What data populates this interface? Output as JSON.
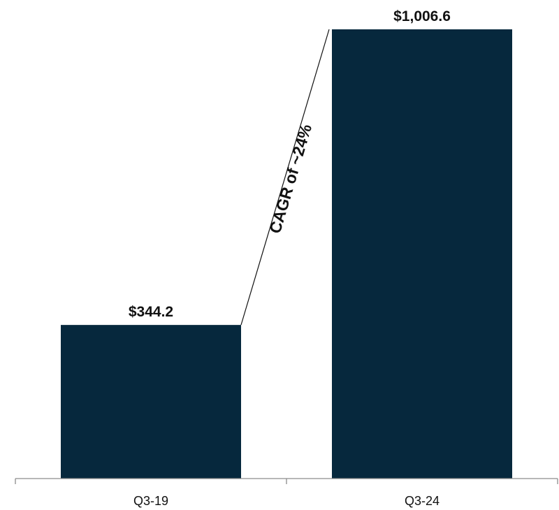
{
  "chart_data": {
    "type": "bar",
    "categories": [
      "Q3-19",
      "Q3-24"
    ],
    "values": [
      344.2,
      1006.6
    ],
    "value_labels": [
      "$344.2",
      "$1,006.6"
    ],
    "annotation": "CAGR of ~24%",
    "ylim": [
      0,
      1090
    ],
    "grid": false,
    "colors": {
      "bar": "#06283d",
      "axis": "#8c8c8c",
      "connector": "#111111"
    }
  }
}
